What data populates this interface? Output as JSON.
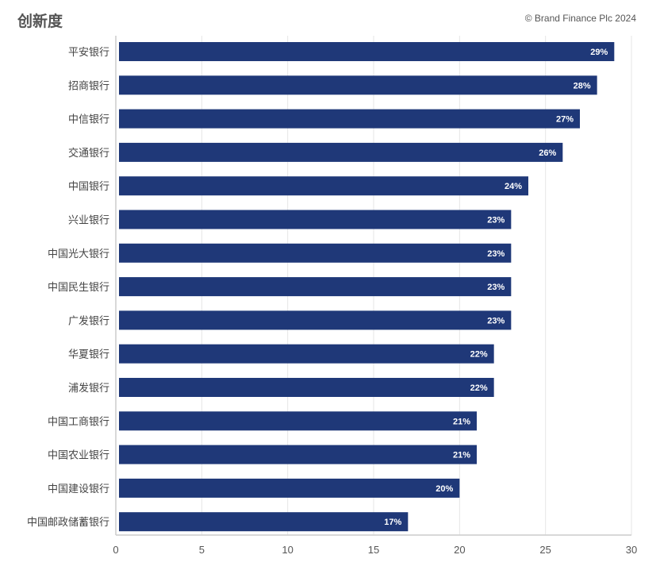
{
  "header": {
    "title": "创新度",
    "credit": "© Brand Finance Plc 2024"
  },
  "colors": {
    "bar": "#1f3878",
    "grid": "#e6e6e6",
    "axis": "#cccccc"
  },
  "chart_data": {
    "type": "bar",
    "orientation": "horizontal",
    "title": "创新度",
    "categories": [
      "平安银行",
      "招商银行",
      "中信银行",
      "交通银行",
      "中国银行",
      "兴业银行",
      "中国光大银行",
      "中国民生银行",
      "广发银行",
      "华夏银行",
      "浦发银行",
      "中国工商银行",
      "中国农业银行",
      "中国建设银行",
      "中国邮政储蓄银行"
    ],
    "values": [
      29,
      28,
      27,
      26,
      24,
      23,
      23,
      23,
      23,
      22,
      22,
      21,
      21,
      20,
      17
    ],
    "value_labels": [
      "29%",
      "28%",
      "27%",
      "26%",
      "24%",
      "23%",
      "23%",
      "23%",
      "23%",
      "22%",
      "22%",
      "21%",
      "21%",
      "20%",
      "17%"
    ],
    "xlim": [
      0,
      30
    ],
    "xticks": [
      "0",
      "5",
      "10",
      "15",
      "20",
      "25",
      "30"
    ],
    "grid": true,
    "legend": "none"
  }
}
